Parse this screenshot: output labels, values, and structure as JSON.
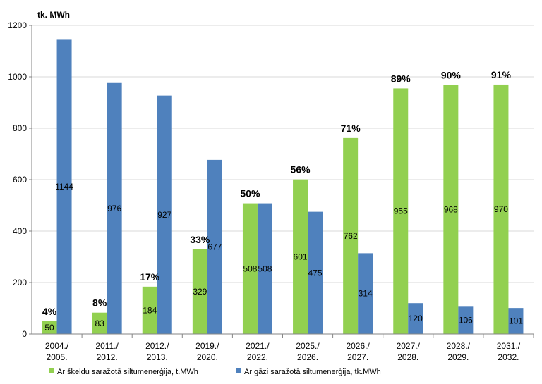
{
  "chart_data": {
    "type": "bar",
    "ylabel": "tk. MWh",
    "ylim": [
      0,
      1200
    ],
    "yticks": [
      0,
      200,
      400,
      600,
      800,
      1000,
      1200
    ],
    "grid": true,
    "legend_placement": "bottom",
    "categories": [
      [
        "2004./",
        "2005."
      ],
      [
        "2011./",
        "2012."
      ],
      [
        "2012./",
        "2013."
      ],
      [
        "2019./",
        "2020."
      ],
      [
        "2021./",
        "2022."
      ],
      [
        "2025./",
        "2026."
      ],
      [
        "2026./",
        "2027."
      ],
      [
        "2027./",
        "2028."
      ],
      [
        "2028./",
        "2029."
      ],
      [
        "2031./",
        "2032."
      ]
    ],
    "series": [
      {
        "name": "Ar šķeldu saražotā siltumenerģija, t.MWh",
        "color": "#92D050",
        "values": [
          50,
          83,
          184,
          329,
          508,
          601,
          762,
          955,
          968,
          970
        ]
      },
      {
        "name": "Ar gāzi saražotā siltumenerģija, tk.MWh",
        "color": "#4F81BD",
        "values": [
          1144,
          976,
          927,
          677,
          508,
          475,
          314,
          120,
          106,
          101
        ]
      }
    ],
    "share_labels": [
      "4%",
      "8%",
      "17%",
      "33%",
      "50%",
      "56%",
      "71%",
      "89%",
      "90%",
      "91%"
    ]
  }
}
